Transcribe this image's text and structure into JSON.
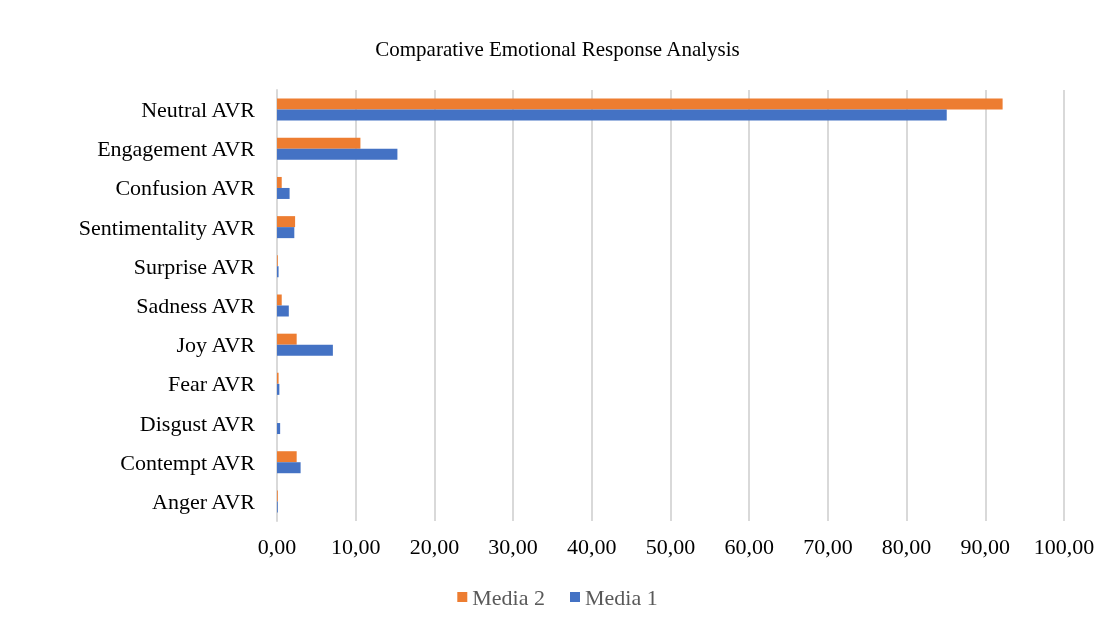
{
  "chart_data": {
    "type": "bar",
    "orientation": "horizontal",
    "title": "Comparative Emotional Response Analysis",
    "categories": [
      "Neutral AVR",
      "Engagement AVR",
      "Confusion AVR",
      "Sentimentality AVR",
      "Surprise AVR",
      "Sadness AVR",
      "Joy AVR",
      "Fear AVR",
      "Disgust AVR",
      "Contempt AVR",
      "Anger AVR"
    ],
    "series": [
      {
        "name": "Media 2",
        "color": "#ed7d31",
        "values": [
          92.2,
          10.6,
          0.6,
          2.3,
          0.1,
          0.6,
          2.5,
          0.2,
          0,
          2.5,
          0.1
        ]
      },
      {
        "name": "Media 1",
        "color": "#4472c4",
        "values": [
          85.1,
          15.3,
          1.6,
          2.2,
          0.2,
          1.5,
          7.1,
          0.3,
          0.4,
          3.0,
          0.1
        ]
      }
    ],
    "xlim": [
      0,
      100
    ],
    "xticks": [
      {
        "value": 0,
        "label": "0,00"
      },
      {
        "value": 10,
        "label": "10,00"
      },
      {
        "value": 20,
        "label": "20,00"
      },
      {
        "value": 30,
        "label": "30,00"
      },
      {
        "value": 40,
        "label": "40,00"
      },
      {
        "value": 50,
        "label": "50,00"
      },
      {
        "value": 60,
        "label": "60,00"
      },
      {
        "value": 70,
        "label": "70,00"
      },
      {
        "value": 80,
        "label": "80,00"
      },
      {
        "value": 90,
        "label": "90,00"
      },
      {
        "value": 100,
        "label": "100,00"
      }
    ],
    "grid": "x",
    "legend": "bottom"
  }
}
